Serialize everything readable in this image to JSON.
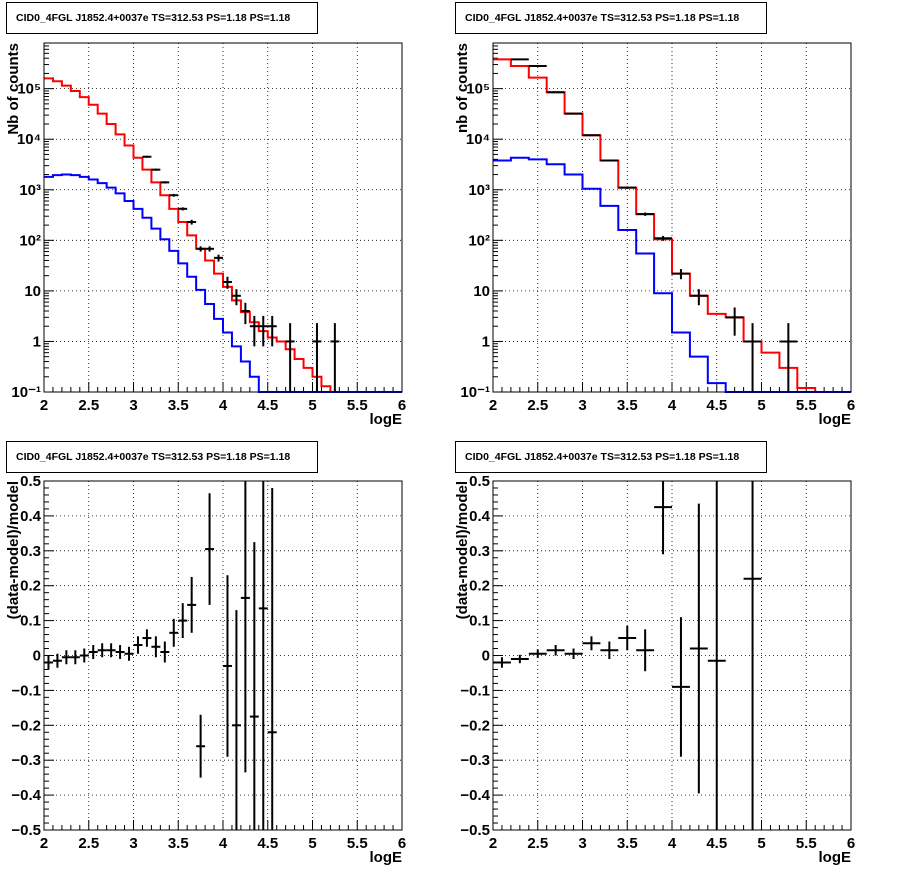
{
  "panel_title": "CID0_4FGL J1852.4+0037e TS=312.53 PS=1.18 PS=1.18",
  "colors": {
    "data": "#000000",
    "total_model": "#ff0000",
    "source_model": "#0000ff",
    "grid": "#000000"
  },
  "chart_data": [
    {
      "type": "line",
      "title": "CID0_4FGL J1852.4+0037e TS=312.53 PS=1.18 PS=1.18",
      "xlabel": "logE",
      "ylabel": "Nb of counts",
      "xlim": [
        2,
        6
      ],
      "ylim": [
        0.1,
        800000
      ],
      "yscale": "log",
      "grid": true,
      "xticks": [
        "2",
        "2.5",
        "3",
        "3.5",
        "4",
        "4.5",
        "5",
        "5.5",
        "6"
      ],
      "yticks": [
        "10⁻¹",
        "1",
        "10",
        "10²",
        "10³",
        "10⁴",
        "10⁵"
      ],
      "bin_edges": [
        2.0,
        2.1,
        2.2,
        2.3,
        2.4,
        2.5,
        2.6,
        2.7,
        2.8,
        2.9,
        3.0,
        3.1,
        3.2,
        3.3,
        3.4,
        3.5,
        3.6,
        3.7,
        3.8,
        3.9,
        4.0,
        4.1,
        4.2,
        4.3,
        4.4,
        4.5,
        4.6,
        4.7,
        4.8,
        4.9,
        5.0,
        5.1,
        5.2,
        5.3,
        5.4,
        5.5,
        5.6,
        5.7,
        5.8,
        5.9,
        6.0
      ],
      "series": [
        {
          "name": "",
          "role": "total_model",
          "color": "#ff0000",
          "values": [
            160000,
            140000,
            115000,
            90000,
            68000,
            48000,
            32000,
            20000,
            12500,
            7500,
            4300,
            2500,
            1400,
            780,
            420,
            230,
            125,
            68,
            40,
            22,
            12,
            6.5,
            3.8,
            2.4,
            1.6,
            1.2,
            1.0,
            0.7,
            0.45,
            0.3,
            0.2,
            0.13,
            0.1,
            0.1,
            0.1,
            0.1,
            0.1,
            0.1,
            0.1,
            0.1
          ]
        },
        {
          "name": "",
          "role": "source_model",
          "color": "#0000ff",
          "values": [
            1800,
            1950,
            2000,
            1950,
            1800,
            1600,
            1350,
            1100,
            850,
            600,
            420,
            280,
            170,
            105,
            62,
            35,
            19,
            10.5,
            5.5,
            2.8,
            1.5,
            0.8,
            0.4,
            0.2,
            0.1,
            0.1,
            0.1,
            0.1,
            0.1,
            0.1,
            0.1,
            0.1,
            0.1,
            0.1,
            0.1,
            0.1,
            0.1,
            0.1,
            0.1,
            0.1
          ]
        }
      ],
      "points": [
        {
          "x": 3.15,
          "y": 4500,
          "ylo": 4300,
          "yhi": 4700
        },
        {
          "x": 3.25,
          "y": 2500,
          "ylo": 2380,
          "yhi": 2620
        },
        {
          "x": 3.35,
          "y": 1400,
          "ylo": 1330,
          "yhi": 1470
        },
        {
          "x": 3.45,
          "y": 780,
          "ylo": 730,
          "yhi": 830
        },
        {
          "x": 3.55,
          "y": 420,
          "ylo": 390,
          "yhi": 450
        },
        {
          "x": 3.65,
          "y": 230,
          "ylo": 205,
          "yhi": 255
        },
        {
          "x": 3.75,
          "y": 68,
          "ylo": 60,
          "yhi": 76
        },
        {
          "x": 3.85,
          "y": 68,
          "ylo": 60,
          "yhi": 76
        },
        {
          "x": 3.95,
          "y": 45,
          "ylo": 38,
          "yhi": 52
        },
        {
          "x": 4.05,
          "y": 15,
          "ylo": 11,
          "yhi": 19
        },
        {
          "x": 4.15,
          "y": 8,
          "ylo": 5.2,
          "yhi": 10.8
        },
        {
          "x": 4.25,
          "y": 4,
          "ylo": 2.2,
          "yhi": 5.8
        },
        {
          "x": 4.35,
          "y": 2,
          "ylo": 0.8,
          "yhi": 3.2
        },
        {
          "x": 4.45,
          "y": 2,
          "ylo": 0.8,
          "yhi": 3.2
        },
        {
          "x": 4.55,
          "y": 2,
          "ylo": 0.8,
          "yhi": 3.2
        },
        {
          "x": 4.75,
          "y": 1,
          "ylo": 0.1,
          "yhi": 2.3
        },
        {
          "x": 5.05,
          "y": 1,
          "ylo": 0.1,
          "yhi": 2.3
        },
        {
          "x": 5.25,
          "y": 1,
          "ylo": 0.1,
          "yhi": 2.3
        }
      ]
    },
    {
      "type": "line",
      "title": "CID0_4FGL J1852.4+0037e TS=312.53 PS=1.18 PS=1.18",
      "xlabel": "logE",
      "ylabel": "nb of counts",
      "xlim": [
        2,
        6
      ],
      "ylim": [
        0.1,
        800000
      ],
      "yscale": "log",
      "grid": true,
      "xticks": [
        "2",
        "2.5",
        "3",
        "3.5",
        "4",
        "4.5",
        "5",
        "5.5",
        "6"
      ],
      "yticks": [
        "10⁻¹",
        "1",
        "10",
        "10²",
        "10³",
        "10⁴",
        "10⁵"
      ],
      "bin_edges": [
        2.0,
        2.2,
        2.4,
        2.6,
        2.8,
        3.0,
        3.2,
        3.4,
        3.6,
        3.8,
        4.0,
        4.2,
        4.4,
        4.6,
        4.8,
        5.0,
        5.2,
        5.4,
        5.6,
        5.8,
        6.0
      ],
      "series": [
        {
          "name": "",
          "role": "total_model",
          "color": "#ff0000",
          "values": [
            380000,
            280000,
            165000,
            85000,
            32000,
            12000,
            3800,
            1100,
            330,
            105,
            22,
            8,
            3.5,
            3.0,
            1.0,
            0.6,
            0.3,
            0.12,
            0.1,
            0.1
          ]
        },
        {
          "name": "",
          "role": "source_model",
          "color": "#0000ff",
          "values": [
            3800,
            4300,
            4000,
            3200,
            2000,
            1050,
            480,
            160,
            55,
            9,
            1.5,
            0.5,
            0.15,
            0.1,
            0.1,
            0.1,
            0.1,
            0.1,
            0.1,
            0.1
          ]
        }
      ],
      "points": [
        {
          "x": 2.3,
          "y": 380000,
          "ylo": 370000,
          "yhi": 390000
        },
        {
          "x": 2.5,
          "y": 280000,
          "ylo": 272000,
          "yhi": 288000
        },
        {
          "x": 2.7,
          "y": 85000,
          "ylo": 82000,
          "yhi": 88000
        },
        {
          "x": 2.9,
          "y": 32000,
          "ylo": 31000,
          "yhi": 33000
        },
        {
          "x": 3.1,
          "y": 12000,
          "ylo": 11600,
          "yhi": 12400
        },
        {
          "x": 3.3,
          "y": 3800,
          "ylo": 3650,
          "yhi": 3950
        },
        {
          "x": 3.5,
          "y": 1100,
          "ylo": 1040,
          "yhi": 1160
        },
        {
          "x": 3.7,
          "y": 330,
          "ylo": 305,
          "yhi": 355
        },
        {
          "x": 3.9,
          "y": 110,
          "ylo": 98,
          "yhi": 122
        },
        {
          "x": 4.1,
          "y": 22,
          "ylo": 17,
          "yhi": 27
        },
        {
          "x": 4.3,
          "y": 8,
          "ylo": 5.2,
          "yhi": 10.8
        },
        {
          "x": 4.7,
          "y": 3,
          "ylo": 1.3,
          "yhi": 4.7
        },
        {
          "x": 4.9,
          "y": 1,
          "ylo": 0.1,
          "yhi": 2.3
        },
        {
          "x": 5.3,
          "y": 1,
          "ylo": 0.1,
          "yhi": 2.3
        }
      ]
    },
    {
      "type": "scatter",
      "title": "CID0_4FGL J1852.4+0037e TS=312.53 PS=1.18 PS=1.18",
      "xlabel": "logE",
      "ylabel": "(data-model)/model",
      "xlim": [
        2,
        6
      ],
      "ylim": [
        -0.5,
        0.5
      ],
      "grid": true,
      "xticks": [
        "2",
        "2.5",
        "3",
        "3.5",
        "4",
        "4.5",
        "5",
        "5.5",
        "6"
      ],
      "yticks": [
        "−0.5",
        "−0.4",
        "−0.3",
        "−0.2",
        "−0.1",
        "0",
        "0.1",
        "0.2",
        "0.3",
        "0.4",
        "0.5"
      ],
      "points": [
        {
          "x": 2.05,
          "y": -0.02,
          "err": 0.02
        },
        {
          "x": 2.15,
          "y": -0.015,
          "err": 0.02
        },
        {
          "x": 2.25,
          "y": -0.005,
          "err": 0.02
        },
        {
          "x": 2.35,
          "y": -0.005,
          "err": 0.02
        },
        {
          "x": 2.45,
          "y": 0.0,
          "err": 0.02
        },
        {
          "x": 2.55,
          "y": 0.01,
          "err": 0.02
        },
        {
          "x": 2.65,
          "y": 0.015,
          "err": 0.02
        },
        {
          "x": 2.75,
          "y": 0.015,
          "err": 0.02
        },
        {
          "x": 2.85,
          "y": 0.01,
          "err": 0.02
        },
        {
          "x": 2.95,
          "y": 0.005,
          "err": 0.02
        },
        {
          "x": 3.05,
          "y": 0.03,
          "err": 0.025
        },
        {
          "x": 3.15,
          "y": 0.05,
          "err": 0.025
        },
        {
          "x": 3.25,
          "y": 0.025,
          "err": 0.03
        },
        {
          "x": 3.35,
          "y": 0.01,
          "err": 0.03
        },
        {
          "x": 3.45,
          "y": 0.065,
          "err": 0.04
        },
        {
          "x": 3.55,
          "y": 0.1,
          "err": 0.05
        },
        {
          "x": 3.65,
          "y": 0.145,
          "err": 0.08
        },
        {
          "x": 3.75,
          "y": -0.26,
          "err": 0.09
        },
        {
          "x": 3.85,
          "y": 0.305,
          "err": 0.16
        },
        {
          "x": 4.05,
          "y": -0.03,
          "err": 0.26
        },
        {
          "x": 4.15,
          "y": -0.2,
          "err": 0.33
        },
        {
          "x": 4.25,
          "y": 0.165,
          "err": 0.5
        },
        {
          "x": 4.35,
          "y": -0.175,
          "err": 0.5
        },
        {
          "x": 4.45,
          "y": 0.135,
          "err": 0.7
        },
        {
          "x": 4.55,
          "y": -0.22,
          "err": 0.7
        }
      ]
    },
    {
      "type": "scatter",
      "title": "CID0_4FGL J1852.4+0037e TS=312.53 PS=1.18 PS=1.18",
      "xlabel": "logE",
      "ylabel": "(data-model)/model",
      "xlim": [
        2,
        6
      ],
      "ylim": [
        -0.5,
        0.5
      ],
      "grid": true,
      "xticks": [
        "2",
        "2.5",
        "3",
        "3.5",
        "4",
        "4.5",
        "5",
        "5.5",
        "6"
      ],
      "yticks": [
        "−0.5",
        "−0.4",
        "−0.3",
        "−0.2",
        "−0.1",
        "0",
        "0.1",
        "0.2",
        "0.3",
        "0.4",
        "0.5"
      ],
      "points": [
        {
          "x": 2.1,
          "y": -0.02,
          "err": 0.015
        },
        {
          "x": 2.3,
          "y": -0.01,
          "err": 0.012
        },
        {
          "x": 2.5,
          "y": 0.005,
          "err": 0.012
        },
        {
          "x": 2.7,
          "y": 0.015,
          "err": 0.015
        },
        {
          "x": 2.9,
          "y": 0.005,
          "err": 0.015
        },
        {
          "x": 3.1,
          "y": 0.035,
          "err": 0.02
        },
        {
          "x": 3.3,
          "y": 0.015,
          "err": 0.025
        },
        {
          "x": 3.5,
          "y": 0.05,
          "err": 0.035
        },
        {
          "x": 3.7,
          "y": 0.015,
          "err": 0.06
        },
        {
          "x": 3.9,
          "y": 0.425,
          "err": 0.135
        },
        {
          "x": 4.1,
          "y": -0.09,
          "err": 0.2
        },
        {
          "x": 4.3,
          "y": 0.02,
          "err": 0.415
        },
        {
          "x": 4.5,
          "y": -0.015,
          "err": 0.6
        },
        {
          "x": 4.9,
          "y": 0.22,
          "err": 0.8
        }
      ]
    }
  ]
}
